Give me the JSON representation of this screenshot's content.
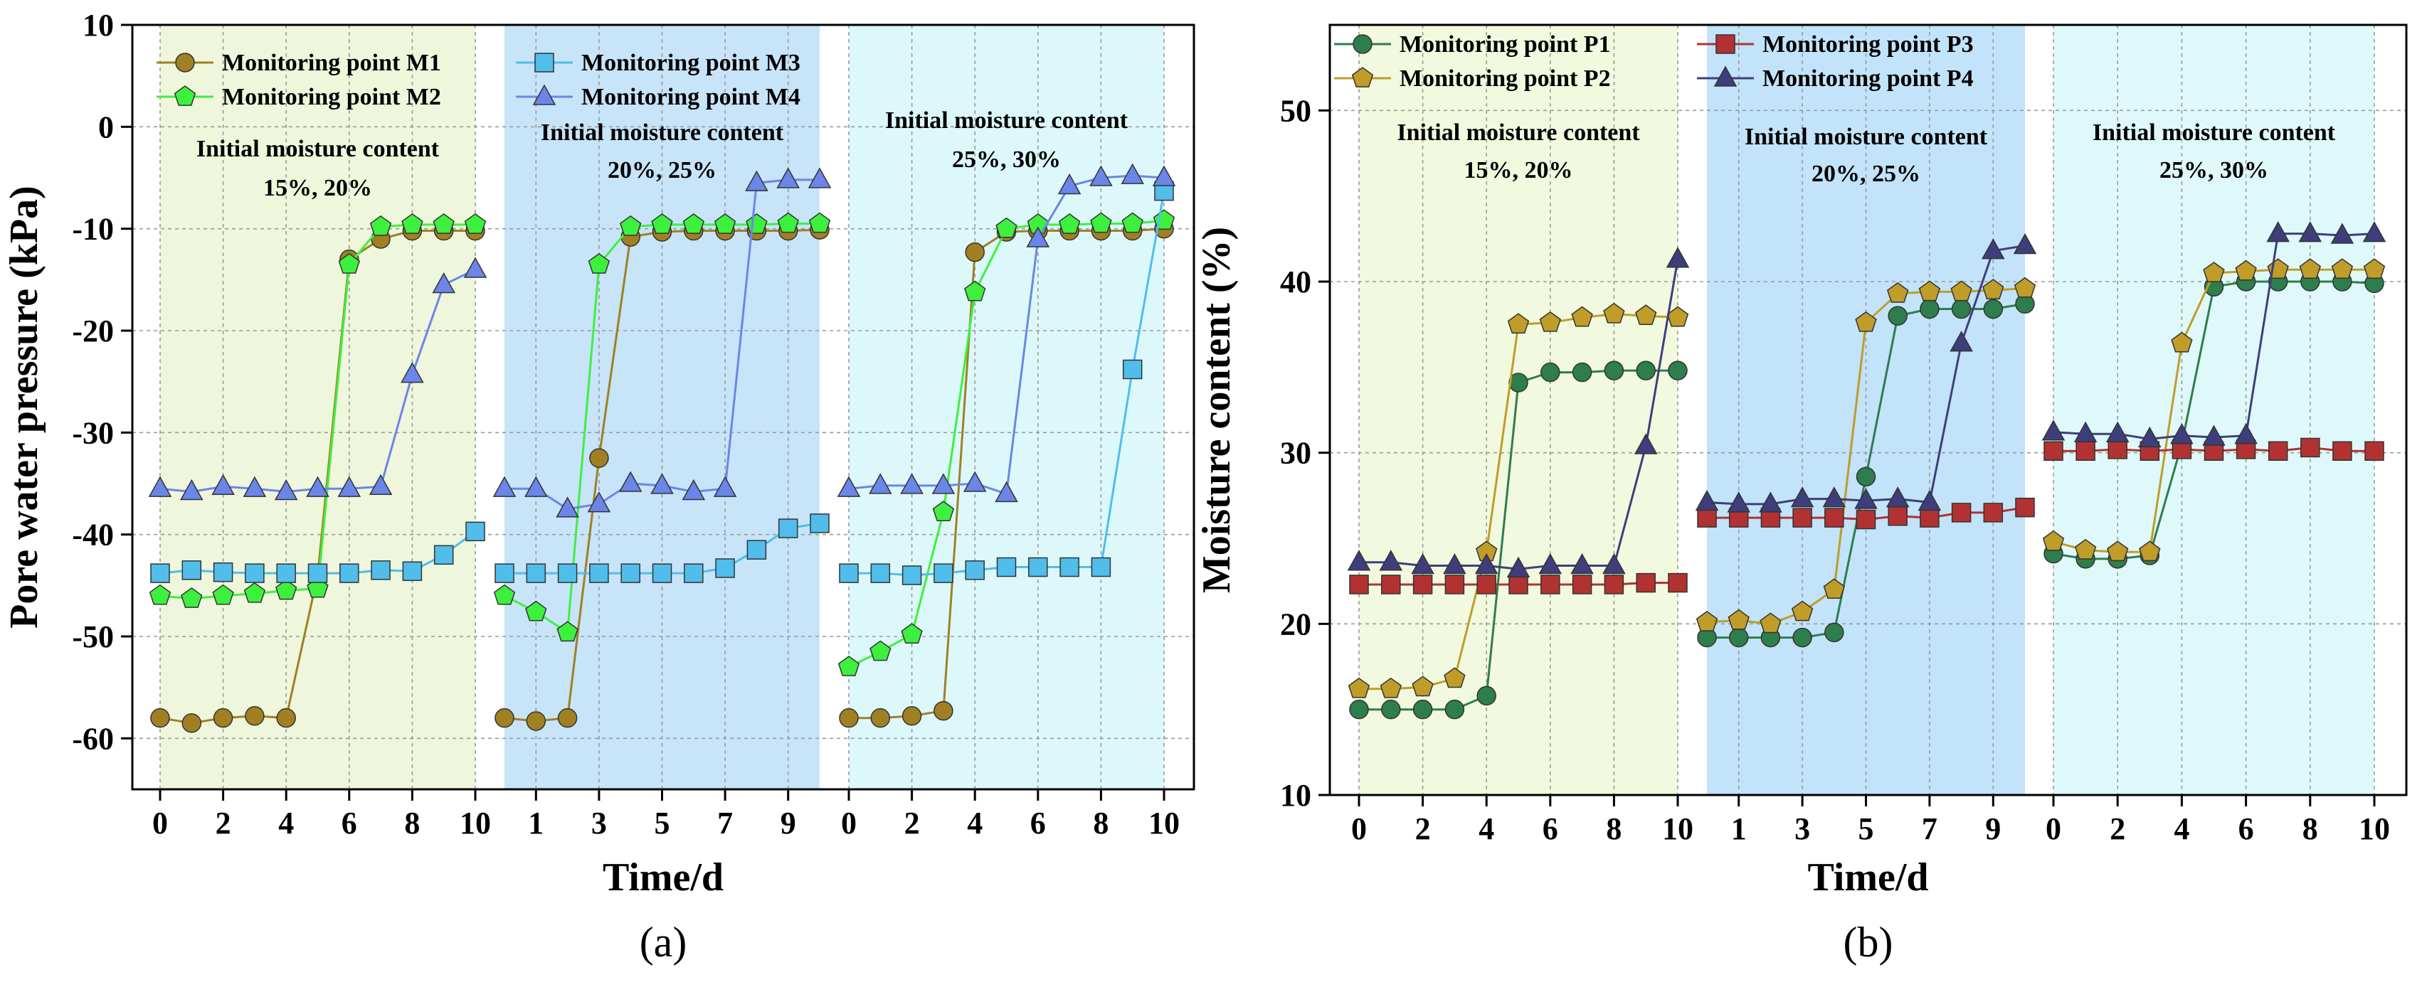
{
  "chart_data": [
    {
      "panel_label": "(a)",
      "type": "line",
      "xlabel": "Time/d",
      "ylabel": "Pore water pressure (kPa)",
      "ylim": [
        -65,
        10
      ],
      "yticks": [
        10,
        0,
        -10,
        -20,
        -30,
        -40,
        -50,
        -60
      ],
      "x_segments": [
        {
          "ticks": [
            0,
            2,
            4,
            6,
            8,
            10
          ],
          "range": [
            0,
            10
          ],
          "bg": "#eef6dc"
        },
        {
          "ticks": [
            1,
            3,
            5,
            7,
            9
          ],
          "range": [
            0,
            10
          ],
          "bg": "#c7e4f9"
        },
        {
          "ticks": [
            0,
            2,
            4,
            6,
            8,
            10
          ],
          "range": [
            0,
            10
          ],
          "bg": "#ddf8fb"
        }
      ],
      "region_labels": [
        [
          "Initial moisture content",
          "15%, 20%"
        ],
        [
          "Initial moisture content",
          "20%, 25%"
        ],
        [
          "Initial moisture content",
          "25%, 30%"
        ]
      ],
      "grid": true,
      "series": [
        {
          "name": "Monitoring point M1",
          "color": "#a08023",
          "marker": "circle",
          "segments": [
            [
              -58,
              -58.5,
              -58,
              -57.8,
              -58,
              -44,
              -13,
              -11,
              -10.2,
              -10.2,
              -10.2
            ],
            [
              -58,
              -58.3,
              -58,
              -32.5,
              -10.8,
              -10.3,
              -10.2,
              -10.2,
              -10.2,
              -10.2,
              -10.1
            ],
            [
              -58,
              -58,
              -57.8,
              -57.3,
              -12.3,
              -10.3,
              -10.2,
              -10.2,
              -10.2,
              -10.2,
              -10
            ]
          ]
        },
        {
          "name": "Monitoring point M2",
          "color": "#3ef03e",
          "marker": "pentagon",
          "segments": [
            [
              -46,
              -46.3,
              -46,
              -45.8,
              -45.5,
              -45.3,
              -13.5,
              -9.8,
              -9.6,
              -9.6,
              -9.6
            ],
            [
              -46,
              -47.6,
              -49.6,
              -13.5,
              -9.8,
              -9.6,
              -9.6,
              -9.6,
              -9.6,
              -9.5,
              -9.5
            ],
            [
              -53,
              -51.5,
              -49.8,
              -37.8,
              -16.2,
              -10,
              -9.6,
              -9.6,
              -9.5,
              -9.5,
              -9.2
            ]
          ]
        },
        {
          "name": "Monitoring point M3",
          "color": "#51bdeb",
          "marker": "square",
          "segments": [
            [
              -43.8,
              -43.5,
              -43.7,
              -43.8,
              -43.8,
              -43.8,
              -43.8,
              -43.5,
              -43.6,
              -42,
              -39.7
            ],
            [
              -43.8,
              -43.8,
              -43.8,
              -43.8,
              -43.8,
              -43.8,
              -43.8,
              -43.3,
              -41.5,
              -39.4,
              -38.9
            ],
            [
              -43.8,
              -43.8,
              -44,
              -43.8,
              -43.5,
              -43.2,
              -43.2,
              -43.2,
              -43.2,
              -23.8,
              -6.3
            ]
          ]
        },
        {
          "name": "Monitoring point M4",
          "color": "#6c85e8",
          "marker": "triangle",
          "segments": [
            [
              -35.5,
              -35.8,
              -35.3,
              -35.5,
              -35.8,
              -35.5,
              -35.5,
              -35.3,
              -24.3,
              -15.5,
              -14
            ],
            [
              -35.5,
              -35.5,
              -37.5,
              -37,
              -35,
              -35.2,
              -35.8,
              -35.5,
              -5.5,
              -5.2,
              -5.2
            ],
            [
              -35.5,
              -35.2,
              -35.2,
              -35.2,
              -35,
              -36,
              -11,
              -5.8,
              -5,
              -4.8,
              -5
            ]
          ]
        }
      ],
      "legend": "top, 2 columns"
    },
    {
      "panel_label": "(b)",
      "type": "line",
      "xlabel": "Time/d",
      "ylabel": "Moisture content (%)",
      "ylim": [
        10,
        55
      ],
      "yticks": [
        10,
        20,
        30,
        40,
        50
      ],
      "x_segments": [
        {
          "ticks": [
            0,
            2,
            4,
            6,
            8,
            10
          ],
          "range": [
            0,
            10
          ],
          "bg": "#f1f9de"
        },
        {
          "ticks": [
            1,
            3,
            5,
            7,
            9
          ],
          "range": [
            0,
            10
          ],
          "bg": "#c2e3fa"
        },
        {
          "ticks": [
            0,
            2,
            4,
            6,
            8,
            10
          ],
          "range": [
            0,
            10
          ],
          "bg": "#dff9fa"
        }
      ],
      "region_labels": [
        [
          "Initial moisture content",
          "15%, 20%"
        ],
        [
          "Initial moisture content",
          "20%, 25%"
        ],
        [
          "Initial moisture content",
          "25%, 30%"
        ]
      ],
      "grid": true,
      "series": [
        {
          "name": "Monitoring point P1",
          "color": "#2e7d4c",
          "marker": "circle",
          "segments": [
            [
              15,
              15,
              15,
              15,
              15.8,
              34.1,
              34.7,
              34.7,
              34.8,
              34.8,
              34.8
            ],
            [
              19.2,
              19.2,
              19.2,
              19.2,
              19.5,
              28.6,
              38,
              38.4,
              38.4,
              38.4,
              38.7
            ],
            [
              24.1,
              23.8,
              23.8,
              24,
              30.5,
              39.7,
              40,
              40,
              40,
              40,
              39.9
            ]
          ]
        },
        {
          "name": "Monitoring point P2",
          "color": "#bf9d28",
          "marker": "pentagon",
          "segments": [
            [
              16.2,
              16.2,
              16.3,
              16.8,
              24.2,
              37.5,
              37.6,
              37.9,
              38.1,
              38,
              37.9
            ],
            [
              20.1,
              20.2,
              20,
              20.7,
              22,
              37.6,
              39.3,
              39.4,
              39.4,
              39.5,
              39.6
            ],
            [
              24.8,
              24.3,
              24.2,
              24.2,
              36.4,
              40.5,
              40.6,
              40.7,
              40.7,
              40.7,
              40.7
            ]
          ]
        },
        {
          "name": "Monitoring point P3",
          "color": "#b23232",
          "marker": "square",
          "segments": [
            [
              22.3,
              22.3,
              22.3,
              22.3,
              22.3,
              22.3,
              22.3,
              22.3,
              22.3,
              22.4,
              22.4
            ],
            [
              26.2,
              26.2,
              26.2,
              26.2,
              26.2,
              26.1,
              26.3,
              26.2,
              26.5,
              26.5,
              26.8
            ],
            [
              30.1,
              30.1,
              30.2,
              30.1,
              30.2,
              30.1,
              30.2,
              30.1,
              30.3,
              30.1,
              30.1
            ]
          ]
        },
        {
          "name": "Monitoring point P4",
          "color": "#3e3e7c",
          "marker": "triangle",
          "segments": [
            [
              23.6,
              23.6,
              23.4,
              23.4,
              23.4,
              23.2,
              23.4,
              23.4,
              23.4,
              30.4,
              41.3
            ],
            [
              27.1,
              27,
              27,
              27.3,
              27.3,
              27.2,
              27.3,
              27.1,
              36.4,
              41.8,
              42.1
            ],
            [
              31.2,
              31.1,
              31.1,
              30.8,
              31,
              30.9,
              31,
              42.8,
              42.8,
              42.7,
              42.8
            ]
          ]
        }
      ],
      "legend": "top, 2 columns"
    }
  ]
}
